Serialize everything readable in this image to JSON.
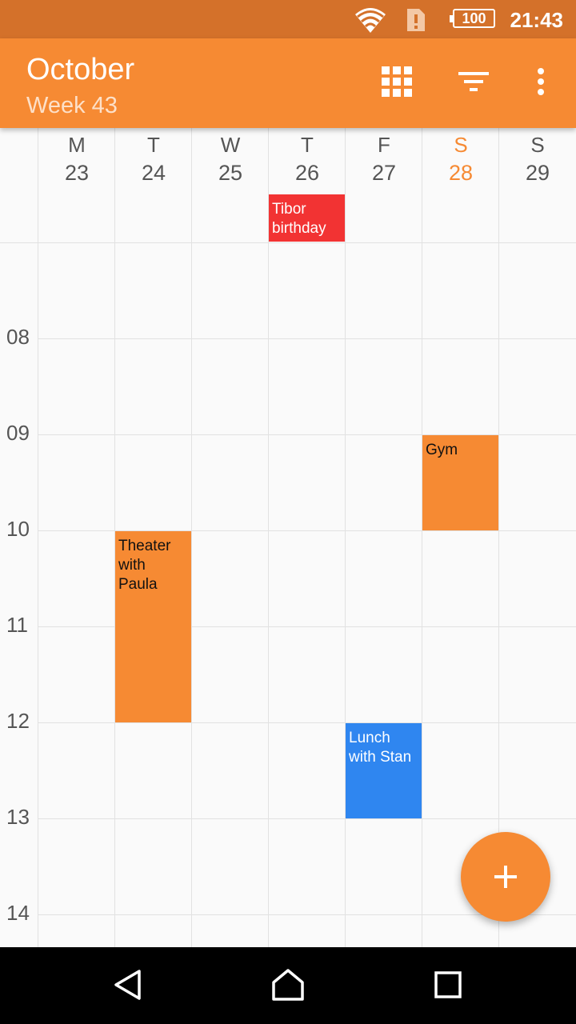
{
  "status_bar": {
    "battery": "100",
    "time": "21:43"
  },
  "app_bar": {
    "title": "October",
    "subtitle": "Week 43"
  },
  "days": [
    {
      "dow": "M",
      "num": "23"
    },
    {
      "dow": "T",
      "num": "24"
    },
    {
      "dow": "W",
      "num": "25"
    },
    {
      "dow": "T",
      "num": "26"
    },
    {
      "dow": "F",
      "num": "27"
    },
    {
      "dow": "S",
      "num": "28"
    },
    {
      "dow": "S",
      "num": "29"
    }
  ],
  "hours": [
    "08",
    "09",
    "10",
    "11",
    "12",
    "13",
    "14"
  ],
  "events": {
    "tibor_birthday": "Tibor birthday",
    "gym": "Gym",
    "theater": "Theater with Paula",
    "lunch": "Lunch with Stan"
  },
  "colors": {
    "accent": "#f68a33",
    "status_bar": "#d4712a",
    "event_red": "#f23333",
    "event_blue": "#2f86f0"
  },
  "icons": {
    "grid": "grid-view-icon",
    "filter": "filter-icon",
    "more": "more-vert-icon",
    "add": "+"
  }
}
